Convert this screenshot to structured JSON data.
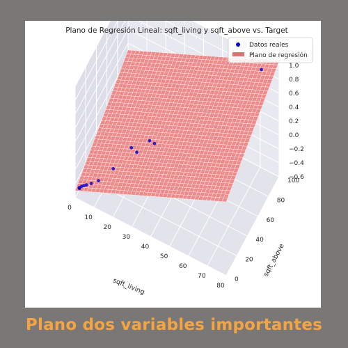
{
  "caption": "Plano dos variables importantes",
  "colors": {
    "page_background": "#7a7876",
    "caption": "#f5a441",
    "pane_back": "#e8e8f0",
    "pane_side": "#dedee8",
    "pane_floor": "#e3e3ec",
    "plane_fill": "#f08080",
    "plane_edge": "#c0504d",
    "points": "#0000cc"
  },
  "chart_data": {
    "type": "scatter",
    "title": "Plano de Regresión Lineal: sqft_living y sqft_above vs. Target",
    "xlabel": "sqft_living",
    "ylabel": "sqft_above",
    "zlabel": "",
    "xlim": [
      0,
      80
    ],
    "ylim": [
      0,
      100
    ],
    "zlim": [
      -0.6,
      1.0
    ],
    "x_ticks": [
      "0",
      "10",
      "20",
      "30",
      "40",
      "50",
      "60",
      "70",
      "80"
    ],
    "y_ticks": [
      "0",
      "20",
      "40",
      "60",
      "80",
      "100"
    ],
    "z_ticks": [
      "−0.6",
      "−0.4",
      "−0.2",
      "0.0",
      "0.2",
      "0.4",
      "0.6",
      "0.8",
      "1.0"
    ],
    "legend": {
      "location": "top-right",
      "entries": [
        "Datos reales",
        "Plano de regresión"
      ]
    },
    "series": [
      {
        "name": "Datos reales",
        "kind": "points",
        "points": [
          {
            "x": 1,
            "y": 4,
            "z": -0.5
          },
          {
            "x": 1.5,
            "y": 3,
            "z": -0.49
          },
          {
            "x": 2,
            "y": 5,
            "z": -0.48
          },
          {
            "x": 3,
            "y": 6,
            "z": -0.47
          },
          {
            "x": 4,
            "y": 7,
            "z": -0.46
          },
          {
            "x": 6,
            "y": 9,
            "z": -0.44
          },
          {
            "x": 9,
            "y": 12,
            "z": -0.4
          },
          {
            "x": 14,
            "y": 22,
            "z": -0.3
          },
          {
            "x": 20,
            "y": 35,
            "z": -0.1
          },
          {
            "x": 22,
            "y": 38,
            "z": -0.18
          },
          {
            "x": 26,
            "y": 48,
            "z": -0.1
          },
          {
            "x": 28,
            "y": 50,
            "z": -0.14
          },
          {
            "x": 72,
            "y": 95,
            "z": 0.9
          }
        ]
      },
      {
        "name": "Plano de regresión",
        "kind": "surface",
        "equation": "z = -0.5 + 0.012 * sqft_living + 0.006 * sqft_above"
      }
    ]
  }
}
